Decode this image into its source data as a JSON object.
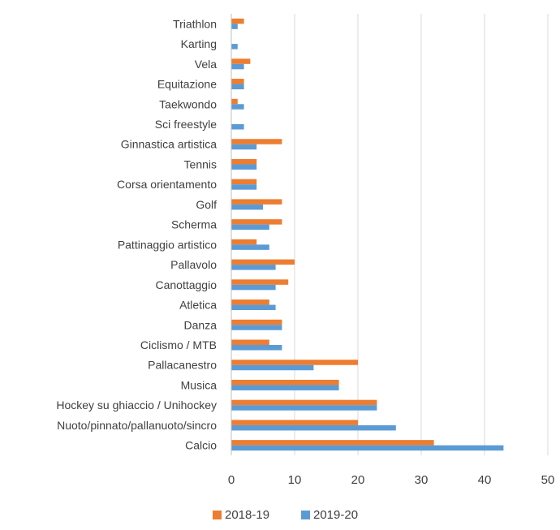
{
  "chart_data": {
    "type": "bar",
    "orientation": "horizontal",
    "categories": [
      "Triathlon",
      "Karting",
      "Vela",
      "Equitazione",
      "Taekwondo",
      "Sci freestyle",
      "Ginnastica artistica",
      "Tennis",
      "Corsa orientamento",
      "Golf",
      "Scherma",
      "Pattinaggio artistico",
      "Pallavolo",
      "Canottaggio",
      "Atletica",
      "Danza",
      "Ciclismo / MTB",
      "Pallacanestro",
      "Musica",
      "Hockey su ghiaccio / Unihockey",
      "Nuoto/pinnato/pallanuoto/sincro",
      "Calcio"
    ],
    "series": [
      {
        "name": "2018-19",
        "color": "#ED7D31",
        "values": [
          2,
          0,
          3,
          2,
          1,
          0,
          8,
          4,
          4,
          8,
          8,
          4,
          10,
          9,
          6,
          8,
          6,
          20,
          17,
          23,
          20,
          32
        ]
      },
      {
        "name": "2019-20",
        "color": "#5B9BD5",
        "values": [
          1,
          1,
          2,
          2,
          2,
          2,
          4,
          4,
          4,
          5,
          6,
          6,
          7,
          7,
          7,
          8,
          8,
          13,
          17,
          23,
          26,
          43
        ]
      }
    ],
    "xlim": [
      0,
      50
    ],
    "x_ticks": [
      0,
      10,
      20,
      30,
      40,
      50
    ],
    "grid": true,
    "legend_position": "bottom",
    "title": "",
    "xlabel": "",
    "ylabel": ""
  }
}
